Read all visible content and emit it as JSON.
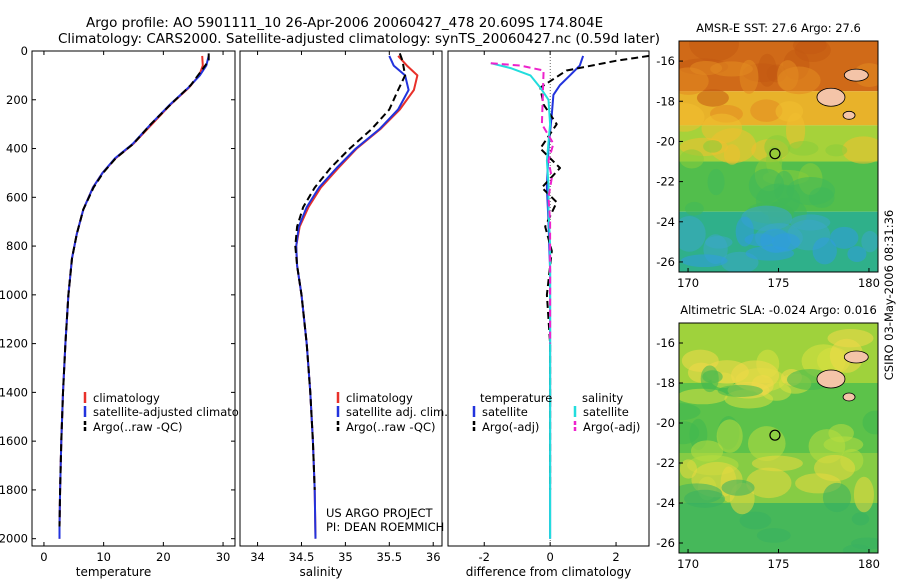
{
  "header": {
    "line1": "Argo profile: AO 5901111_10 26-Apr-2006 20060427_478 20.609S 174.804E",
    "line2": "Climatology: CARS2000. Satellite-adjusted climatology: synTS_20060427.nc (0.59d later)"
  },
  "side_label": "CSIRO 03-May-2006 08:31:36",
  "project": {
    "line1": "US ARGO PROJECT",
    "line2": "PI: DEAN ROEMMICH"
  },
  "colors": {
    "climatology": "#e8302a",
    "satellite": "#2233dd",
    "argo": "#000000",
    "salinity_satellite": "#22dddd",
    "salinity_argo": "#ee22cc"
  },
  "chart_data": [
    {
      "type": "line",
      "name": "temperature_profile",
      "xlabel": "temperature",
      "xlim": [
        -2,
        32
      ],
      "ylim": [
        2030,
        0
      ],
      "xticks": [
        "0",
        "10",
        "20",
        "30"
      ],
      "xtick_values": [
        0,
        10,
        20,
        30
      ],
      "yticks": [
        "0",
        "200",
        "400",
        "600",
        "800",
        "1000",
        "1200",
        "1400",
        "1600",
        "1800",
        "2000"
      ],
      "ytick_values": [
        0,
        200,
        400,
        600,
        800,
        1000,
        1200,
        1400,
        1600,
        1800,
        2000
      ],
      "legend": [
        "climatology",
        "satellite-adjusted climatology",
        "Argo(..raw -QC)"
      ],
      "series": [
        {
          "name": "climatology",
          "color": "climatology",
          "dash": false,
          "x": [
            26.5,
            26.6,
            26.0,
            24.3,
            21.2,
            18.1,
            15.0,
            12.0,
            9.8,
            8.2,
            6.6,
            5.5,
            4.7,
            4.1,
            3.6,
            3.2,
            2.9,
            2.7,
            2.6,
            2.6
          ],
          "y": [
            20,
            60,
            100,
            150,
            220,
            300,
            380,
            440,
            500,
            560,
            650,
            750,
            850,
            1000,
            1200,
            1400,
            1600,
            1800,
            1950,
            2000
          ]
        },
        {
          "name": "satellite-adjusted climatology",
          "color": "satellite",
          "dash": false,
          "x": [
            27.6,
            27.2,
            26.1,
            24.2,
            21.1,
            17.9,
            14.9,
            11.9,
            9.8,
            8.2,
            6.6,
            5.5,
            4.7,
            4.1,
            3.6,
            3.2,
            2.9,
            2.7,
            2.6,
            2.6
          ],
          "y": [
            20,
            60,
            100,
            150,
            220,
            300,
            380,
            440,
            500,
            560,
            650,
            750,
            850,
            1000,
            1200,
            1400,
            1600,
            1800,
            1950,
            2000
          ]
        },
        {
          "name": "Argo(..raw -QC)",
          "color": "argo",
          "dash": true,
          "x": [
            27.6,
            27.6,
            26.4,
            24.6,
            21.2,
            17.9,
            15.0,
            12.0,
            9.9,
            8.3,
            6.6,
            5.5,
            4.7,
            4.1,
            3.6,
            3.2,
            2.9,
            2.7,
            2.6
          ],
          "y": [
            10,
            40,
            80,
            140,
            220,
            300,
            380,
            440,
            500,
            560,
            650,
            750,
            850,
            1000,
            1200,
            1400,
            1600,
            1800,
            1950
          ]
        }
      ]
    },
    {
      "type": "line",
      "name": "salinity_profile",
      "xlabel": "salinity",
      "xlim": [
        33.8,
        36.1
      ],
      "ylim": [
        2030,
        0
      ],
      "xticks": [
        "34",
        "34.5",
        "35",
        "35.5",
        "36"
      ],
      "xtick_values": [
        34,
        34.5,
        35,
        35.5,
        36
      ],
      "legend": [
        "climatology",
        "satellite adj. clim.",
        "Argo(..raw -QC)"
      ],
      "series": [
        {
          "name": "climatology",
          "color": "climatology",
          "dash": false,
          "x": [
            35.6,
            35.7,
            35.82,
            35.78,
            35.62,
            35.4,
            35.13,
            34.92,
            34.72,
            34.58,
            34.48,
            34.44,
            34.45,
            34.5,
            34.56,
            34.6,
            34.63,
            34.65,
            34.66
          ],
          "y": [
            20,
            60,
            100,
            160,
            240,
            320,
            400,
            480,
            560,
            640,
            720,
            800,
            880,
            1000,
            1200,
            1400,
            1600,
            1800,
            2000
          ]
        },
        {
          "name": "satellite adj. clim.",
          "color": "satellite",
          "dash": false,
          "x": [
            35.5,
            35.55,
            35.68,
            35.72,
            35.6,
            35.39,
            35.12,
            34.9,
            34.7,
            34.56,
            34.47,
            34.44,
            34.45,
            34.5,
            34.56,
            34.6,
            34.63,
            34.65,
            34.66
          ],
          "y": [
            20,
            60,
            100,
            160,
            240,
            320,
            400,
            480,
            560,
            640,
            720,
            800,
            880,
            1000,
            1200,
            1400,
            1600,
            1800,
            2000
          ]
        },
        {
          "name": "Argo(..raw -QC)",
          "color": "argo",
          "dash": true,
          "x": [
            35.62,
            35.65,
            35.68,
            35.6,
            35.5,
            35.3,
            35.05,
            34.83,
            34.65,
            34.52,
            34.45,
            34.43,
            34.45,
            34.5,
            34.56,
            34.6,
            34.63,
            34.65
          ],
          "y": [
            10,
            40,
            100,
            160,
            240,
            320,
            400,
            480,
            560,
            640,
            720,
            800,
            880,
            1000,
            1200,
            1400,
            1600,
            1800
          ]
        }
      ]
    },
    {
      "type": "line",
      "name": "difference_profile",
      "xlabel": "difference from climatology",
      "xlim": [
        -3.1,
        3.0
      ],
      "ylim": [
        2030,
        0
      ],
      "xticks": [
        "-2",
        "0",
        "2"
      ],
      "xtick_values": [
        -2,
        0,
        2
      ],
      "legend_groups": [
        "temperature",
        "salinity"
      ],
      "legend": [
        "satellite",
        "Argo(-adj)",
        "satellite",
        "Argo(-adj)"
      ],
      "series": [
        {
          "name": "temperature satellite",
          "color": "satellite",
          "dash": false,
          "x": [
            1.0,
            0.9,
            0.6,
            0.3,
            0.1,
            0.05,
            -0.05,
            -0.1,
            -0.05,
            0.0,
            0.0,
            0.0,
            0.0
          ],
          "y": [
            20,
            60,
            100,
            140,
            180,
            260,
            400,
            560,
            700,
            900,
            1200,
            1600,
            2000
          ]
        },
        {
          "name": "temperature Argo(-adj)",
          "color": "argo",
          "dash": true,
          "x": [
            3.0,
            2.0,
            0.5,
            -0.3,
            -0.2,
            0.2,
            -0.3,
            0.3,
            -0.25,
            0.2,
            -0.15,
            0.05,
            -0.1,
            0.0,
            0.0,
            0.0
          ],
          "y": [
            20,
            40,
            80,
            150,
            220,
            300,
            400,
            480,
            560,
            620,
            720,
            820,
            1000,
            1200,
            1400,
            1800
          ]
        },
        {
          "name": "salinity satellite",
          "color": "salinity_satellite",
          "dash": false,
          "x": [
            -1.8,
            -1.2,
            -0.6,
            -0.3,
            -0.05,
            0.0,
            -0.1,
            -0.05,
            -0.05,
            0.0,
            0.0,
            0.0
          ],
          "y": [
            50,
            70,
            100,
            150,
            200,
            300,
            450,
            550,
            650,
            800,
            1200,
            2000
          ]
        },
        {
          "name": "salinity Argo(-adj)",
          "color": "salinity_argo",
          "dash": true,
          "x": [
            -1.8,
            -0.9,
            -0.2,
            -0.25,
            0.1,
            -0.05,
            0.05,
            -0.05,
            0.0,
            0.0,
            0.0
          ],
          "y": [
            50,
            60,
            80,
            300,
            380,
            450,
            520,
            600,
            700,
            900,
            1200
          ]
        }
      ]
    },
    {
      "type": "heatmap",
      "name": "sst_map",
      "title": "AMSR-E SST: 27.6 Argo: 27.6",
      "xlim": [
        169.5,
        180.5
      ],
      "ylim": [
        -26.5,
        -15
      ],
      "xticks": [
        "170",
        "175",
        "180"
      ],
      "xtick_values": [
        170,
        175,
        180
      ],
      "yticks": [
        "-16",
        "-18",
        "-20",
        "-22",
        "-24",
        "-26"
      ],
      "ytick_values": [
        -16,
        -18,
        -20,
        -22,
        -24,
        -26
      ],
      "marker": {
        "lon": 174.804,
        "lat": -20.609
      },
      "bands": [
        {
          "lat_top": -15.0,
          "lat_bottom": -17.5,
          "color": "#d06a18"
        },
        {
          "lat_top": -17.5,
          "lat_bottom": -19.2,
          "color": "#e8b22a"
        },
        {
          "lat_top": -19.2,
          "lat_bottom": -21.0,
          "color": "#a6d23a"
        },
        {
          "lat_top": -21.0,
          "lat_bottom": -23.5,
          "color": "#52be4c"
        },
        {
          "lat_top": -23.5,
          "lat_bottom": -26.5,
          "color": "#2fb08a"
        }
      ]
    },
    {
      "type": "heatmap",
      "name": "sla_map",
      "title": "Altimetric SLA: -0.024 Argo: 0.016",
      "xlim": [
        169.5,
        180.5
      ],
      "ylim": [
        -26.5,
        -15
      ],
      "xticks": [
        "170",
        "175",
        "180"
      ],
      "xtick_values": [
        170,
        175,
        180
      ],
      "yticks": [
        "-16",
        "-18",
        "-20",
        "-22",
        "-24",
        "-26"
      ],
      "ytick_values": [
        -16,
        -18,
        -20,
        -22,
        -24,
        -26
      ],
      "marker": {
        "lon": 174.804,
        "lat": -20.609
      },
      "bands": [
        {
          "lat_top": -15.0,
          "lat_bottom": -18.0,
          "color": "#9fd23c"
        },
        {
          "lat_top": -18.0,
          "lat_bottom": -21.5,
          "color": "#5cc24a"
        },
        {
          "lat_top": -21.5,
          "lat_bottom": -24.0,
          "color": "#86cc44"
        },
        {
          "lat_top": -24.0,
          "lat_bottom": -26.5,
          "color": "#46b85a"
        }
      ]
    }
  ]
}
